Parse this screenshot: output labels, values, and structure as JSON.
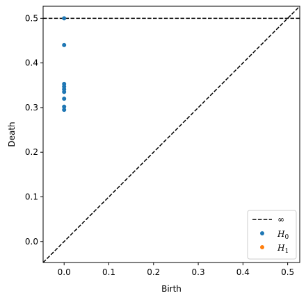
{
  "chart_data": {
    "type": "scatter",
    "title": "",
    "xlabel": "Birth",
    "ylabel": "Death",
    "xlim": [
      -0.047,
      0.527
    ],
    "ylim": [
      -0.047,
      0.527
    ],
    "x_ticks": [
      "0.0",
      "0.1",
      "0.2",
      "0.3",
      "0.4",
      "0.5"
    ],
    "y_ticks": [
      "0.0",
      "0.1",
      "0.2",
      "0.3",
      "0.4",
      "0.5"
    ],
    "grid": false,
    "legend_position": "bottom-right",
    "series": [
      {
        "name": "H_0",
        "color": "#1f77b4",
        "points": [
          [
            0.0,
            0.5
          ],
          [
            0.0,
            0.44
          ],
          [
            0.0,
            0.353
          ],
          [
            0.0,
            0.347
          ],
          [
            0.0,
            0.341
          ],
          [
            0.0,
            0.335
          ],
          [
            0.0,
            0.32
          ],
          [
            0.0,
            0.302
          ],
          [
            0.0,
            0.295
          ]
        ]
      },
      {
        "name": "H_1",
        "color": "#ff7f0e",
        "points": []
      }
    ],
    "reference_lines": [
      {
        "kind": "diagonal",
        "style": "dashed",
        "color": "#000000"
      },
      {
        "kind": "infinity",
        "y": 0.5,
        "style": "dashed",
        "color": "#000000",
        "label": "∞"
      }
    ],
    "legend": {
      "infinity_label": "∞",
      "h0_base": "H",
      "h0_sub": "0",
      "h1_base": "H",
      "h1_sub": "1"
    }
  }
}
